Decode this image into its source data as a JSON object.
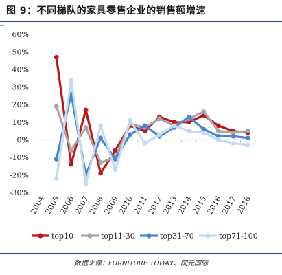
{
  "title": "图 9：不同梯队的家具零售企业的销售额增速",
  "source": "数据来源：FURNITURE TODAY、国元国际",
  "chart_data": {
    "type": "line",
    "x": [
      "2004",
      "2005",
      "2006",
      "2007",
      "2008",
      "2009",
      "2010",
      "2011",
      "2012",
      "2013",
      "2014",
      "2015",
      "2016",
      "2017",
      "2018"
    ],
    "ylim": [
      -30,
      60
    ],
    "yticks": [
      -30,
      -20,
      -10,
      0,
      10,
      20,
      30,
      40,
      50,
      60
    ],
    "ytick_labels": [
      "-30%",
      "-20%",
      "-10%",
      "0%",
      "10%",
      "20%",
      "30%",
      "40%",
      "50%",
      "60%"
    ],
    "grid": false,
    "legend_position": "bottom",
    "series": [
      {
        "name": "top10",
        "color": "#c0141c",
        "values": [
          null,
          47,
          -14,
          17,
          -19,
          -6,
          8,
          5,
          13,
          10,
          10,
          14,
          8,
          5,
          4
        ]
      },
      {
        "name": "top11-30",
        "color": "#a6a6a6",
        "values": [
          null,
          19,
          -6,
          7,
          -13,
          -10,
          9,
          7,
          12,
          8,
          12,
          16,
          5,
          4,
          5
        ]
      },
      {
        "name": "top31-70",
        "color": "#4a86c8",
        "values": [
          null,
          -11,
          26,
          -20,
          1,
          -11,
          3,
          8,
          2,
          7,
          13,
          6,
          2,
          2,
          1
        ]
      },
      {
        "name": "top71-100",
        "color": "#c3dbf2",
        "values": [
          null,
          -22,
          34,
          -25,
          8,
          -17,
          11,
          -2,
          3,
          8,
          5,
          4,
          0,
          -2,
          -3
        ]
      }
    ]
  }
}
